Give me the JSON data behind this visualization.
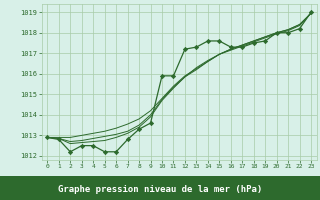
{
  "xlabel": "Graphe pression niveau de la mer (hPa)",
  "x_values": [
    0,
    1,
    2,
    3,
    4,
    5,
    6,
    7,
    8,
    9,
    10,
    11,
    12,
    13,
    14,
    15,
    16,
    17,
    18,
    19,
    20,
    21,
    22,
    23
  ],
  "main_line": [
    1012.9,
    1012.8,
    1012.2,
    1012.5,
    1012.5,
    1012.2,
    1012.2,
    1012.8,
    1013.3,
    1013.6,
    1015.9,
    1015.9,
    1017.2,
    1017.3,
    1017.6,
    1017.6,
    1017.3,
    1017.3,
    1017.5,
    1017.6,
    1018.0,
    1018.0,
    1018.2,
    1019.0
  ],
  "smooth_line1": [
    1012.9,
    1012.85,
    1012.6,
    1012.65,
    1012.7,
    1012.75,
    1012.9,
    1013.1,
    1013.4,
    1013.9,
    1014.7,
    1015.3,
    1015.85,
    1016.3,
    1016.65,
    1016.95,
    1017.15,
    1017.35,
    1017.55,
    1017.75,
    1017.95,
    1018.1,
    1018.35,
    1018.95
  ],
  "smooth_line2": [
    1012.9,
    1012.85,
    1012.7,
    1012.75,
    1012.85,
    1012.95,
    1013.05,
    1013.2,
    1013.5,
    1014.0,
    1014.75,
    1015.35,
    1015.85,
    1016.2,
    1016.6,
    1016.95,
    1017.2,
    1017.4,
    1017.6,
    1017.8,
    1018.0,
    1018.15,
    1018.4,
    1018.95
  ],
  "smooth_line3": [
    1012.9,
    1012.9,
    1012.9,
    1013.0,
    1013.1,
    1013.2,
    1013.35,
    1013.55,
    1013.8,
    1014.2,
    1014.8,
    1015.4,
    1015.9,
    1016.25,
    1016.6,
    1016.95,
    1017.2,
    1017.4,
    1017.6,
    1017.8,
    1018.0,
    1018.15,
    1018.4,
    1018.95
  ],
  "line_color": "#2d6a2d",
  "bg_color": "#d8f0e8",
  "grid_color": "#a8cca8",
  "text_color": "#2d6a2d",
  "bar_color": "#2d6a2d",
  "bar_text_color": "#ffffff",
  "ylim": [
    1011.8,
    1019.4
  ],
  "yticks": [
    1012,
    1013,
    1014,
    1015,
    1016,
    1017,
    1018,
    1019
  ],
  "xticks": [
    0,
    1,
    2,
    3,
    4,
    5,
    6,
    7,
    8,
    9,
    10,
    11,
    12,
    13,
    14,
    15,
    16,
    17,
    18,
    19,
    20,
    21,
    22,
    23
  ]
}
